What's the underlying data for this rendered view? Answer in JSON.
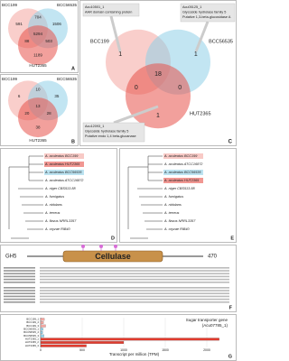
{
  "panels": {
    "A": {
      "letter": "A",
      "sets": [
        "BCC199",
        "BCC56535",
        "HUT2365"
      ],
      "regions": {
        "a": 591,
        "ab": 704,
        "b": 1506,
        "ac": 88,
        "abc": 5294,
        "bc": 503,
        "c": 1189
      }
    },
    "B": {
      "letter": "B",
      "sets": [
        "BCC199",
        "BCC56535",
        "HUT2365"
      ],
      "regions": {
        "a": 6,
        "ab": 10,
        "b": 35,
        "ac": 20,
        "abc": 13,
        "bc": 28,
        "c": 38
      }
    },
    "C": {
      "letter": "C",
      "sets": [
        "BCC199",
        "BCC56535",
        "HUT2365"
      ],
      "regions": {
        "a": 1,
        "b": 1,
        "ac": 0,
        "abc": 18,
        "bc": 0,
        "c": 1
      },
      "callouts": [
        [
          "Acu10501_1",
          "AAR domain containing protein"
        ],
        [
          "Acu05125_1",
          "Glycoside hydrolase family 5",
          "Putative 1,3-beta-glucosidase A"
        ],
        [
          "Acu12093_1",
          "Glycoside hydrolase family 5",
          "Putative endo 1,4 beta-glucanase"
        ]
      ]
    },
    "D": {
      "letter": "D",
      "leaves": [
        {
          "label": "A. aculeatus BCC199",
          "highlight": "#f4a6a0"
        },
        {
          "label": "A. aculeatus HUT2365",
          "highlight": "#e8524a"
        },
        {
          "label": "A. aculeatus BCC56535",
          "highlight": "#8fd0e8"
        },
        {
          "label": "A. aculeatus ATCC16872"
        },
        {
          "label": "A. niger CBS513.88"
        },
        {
          "label": "A. fumigatus"
        },
        {
          "label": "A. nidulans"
        },
        {
          "label": "A. terreus"
        },
        {
          "label": "A. flavus NRRL3357"
        },
        {
          "label": "A. oryzae RIB40"
        }
      ]
    },
    "E": {
      "letter": "E",
      "leaves": [
        {
          "label": "A. aculeatus BCC199",
          "highlight": "#f4a6a0"
        },
        {
          "label": "A. aculeatus ATCC16872"
        },
        {
          "label": "A. aculeatus BCC56535",
          "highlight": "#8fd0e8"
        },
        {
          "label": "A. aculeatus HUT2365",
          "highlight": "#e8524a"
        },
        {
          "label": "A. niger CBS513.88"
        },
        {
          "label": "A. fumigatus"
        },
        {
          "label": "A. nidulans"
        },
        {
          "label": "A. terreus"
        },
        {
          "label": "A. flavus NRRL3357"
        },
        {
          "label": "A. oryzae RIB40"
        }
      ]
    },
    "F": {
      "letter": "F",
      "domain_start": "GH5",
      "domain": "Cellulase",
      "length": "470"
    }
  },
  "chart_data": {
    "type": "hbar",
    "letter": "G",
    "title": "Sugar transporter gene",
    "subtitle": "(Acu07785_1)",
    "categories": [
      "BCC199_1",
      "BCC199_2",
      "BCC199_3",
      "BCC56535_1",
      "BCC56535_2",
      "BCC56535_3",
      "HUT2365_1",
      "HUT2365_2",
      "HUT2365_3"
    ],
    "values": [
      45,
      35,
      60,
      30,
      25,
      40,
      2150,
      1000,
      550
    ],
    "colors": [
      "#f4a6a0",
      "#f4a6a0",
      "#f4a6a0",
      "#8fd0e8",
      "#8fd0e8",
      "#8fd0e8",
      "#e23b2e",
      "#e23b2e",
      "#e23b2e"
    ],
    "xlim": [
      0,
      2250
    ],
    "xticks": [
      0,
      500,
      1000,
      1500,
      2000
    ],
    "grid": true,
    "xlabel": "Transcript per million (TPM)"
  }
}
